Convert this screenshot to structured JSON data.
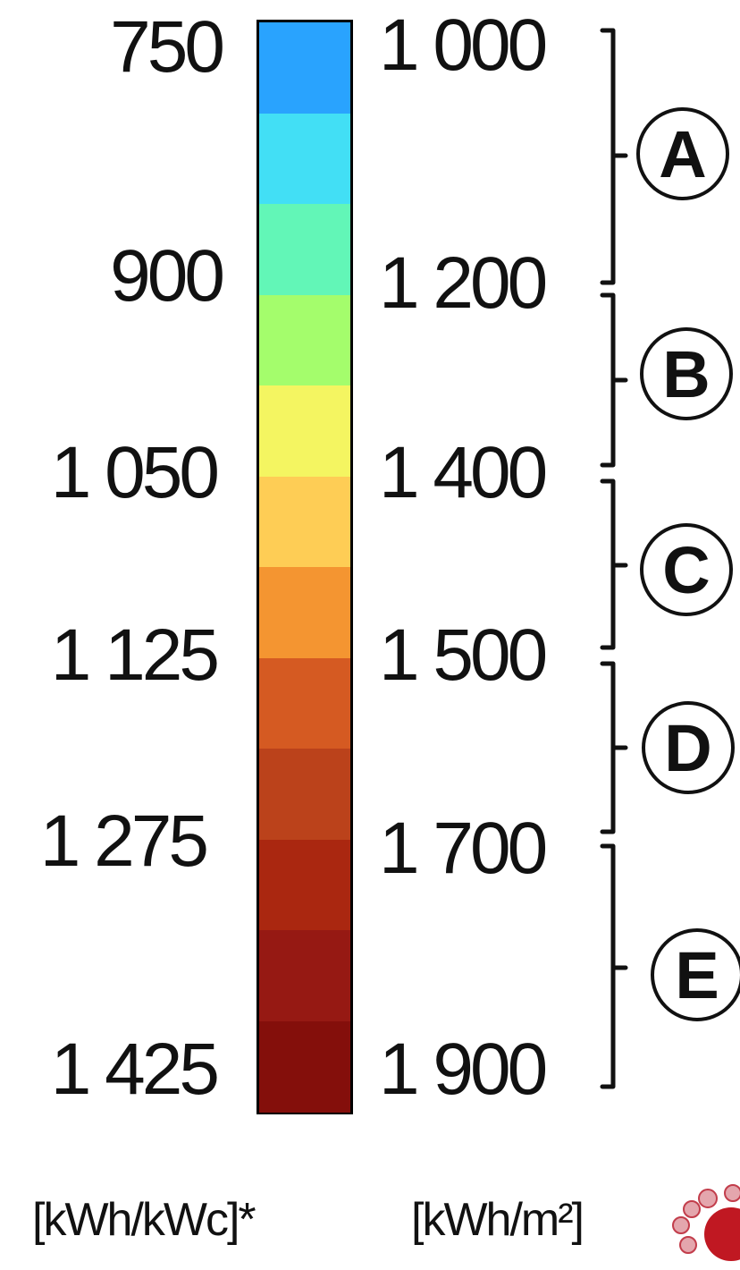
{
  "chart_data": {
    "type": "heatmap",
    "left_scale": {
      "unit": "[kWh/kWc]*",
      "ticks": [
        "750",
        "900",
        "1 050",
        "1 125",
        "1 275",
        "1 425"
      ]
    },
    "right_scale": {
      "unit": "[kWh/m²]",
      "ticks": [
        "1 000",
        "1 200",
        "1 400",
        "1 500",
        "1 700",
        "1 900"
      ]
    },
    "bands": [
      {
        "color": "#29a3fe"
      },
      {
        "color": "#42dff5"
      },
      {
        "color": "#62f6b7"
      },
      {
        "color": "#a4fd6c"
      },
      {
        "color": "#f4f561"
      },
      {
        "color": "#fecd55"
      },
      {
        "color": "#f49531"
      },
      {
        "color": "#d55a22"
      },
      {
        "color": "#bb421b"
      },
      {
        "color": "#aa2710"
      },
      {
        "color": "#961913"
      },
      {
        "color": "#840f0b"
      }
    ],
    "categories": [
      "A",
      "B",
      "C",
      "D",
      "E"
    ]
  }
}
